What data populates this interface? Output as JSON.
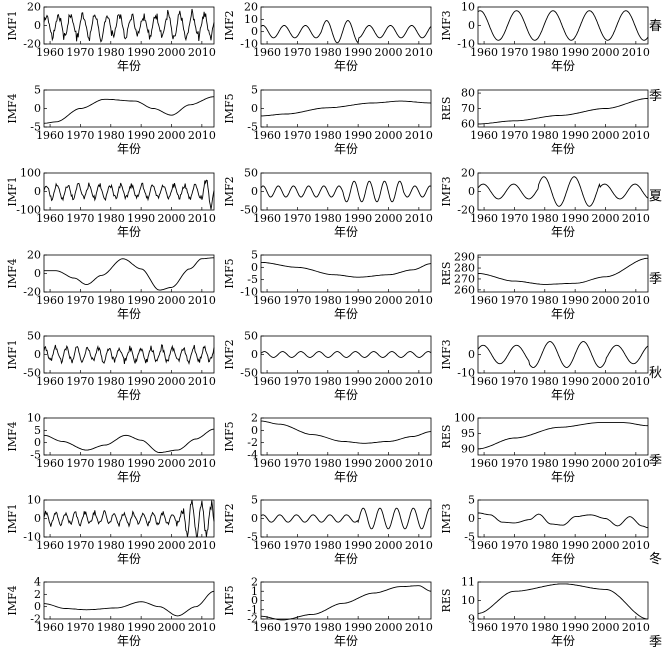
{
  "x_label": "年份",
  "x_ticks": [
    1960,
    1970,
    1980,
    1990,
    2000,
    2010
  ],
  "seasons": [
    "春",
    "季",
    "夏",
    "季",
    "秋",
    "季",
    "冬",
    "季"
  ],
  "line_color": "#000000",
  "chart_data": [
    {
      "type": "line",
      "season_index": 0,
      "row": 0,
      "col": 0,
      "ylabel": "IMF1",
      "xlim": [
        1958,
        2014
      ],
      "ylim": [
        -20,
        20
      ],
      "yticks": [
        -20,
        0,
        20
      ],
      "shape": "osc",
      "params": {
        "period": 4,
        "amp": 12,
        "phase": 0.3,
        "noise": 0.5
      }
    },
    {
      "type": "line",
      "season_index": 0,
      "row": 0,
      "col": 1,
      "ylabel": "IMF2",
      "xlim": [
        1958,
        2014
      ],
      "ylim": [
        -10,
        20
      ],
      "yticks": [
        -10,
        0,
        10,
        20
      ],
      "shape": "osc",
      "params": {
        "period": 7,
        "amp": 5,
        "phase": 1.0,
        "mod": [
          [
            1978,
            1990,
            9
          ]
        ]
      }
    },
    {
      "type": "line",
      "season_index": 0,
      "row": 0,
      "col": 2,
      "ylabel": "IMF3",
      "xlim": [
        1958,
        2014
      ],
      "ylim": [
        -10,
        10
      ],
      "yticks": [
        -10,
        0,
        10
      ],
      "shape": "osc",
      "params": {
        "period": 12,
        "amp": 8,
        "phase": 1.2
      }
    },
    {
      "type": "line",
      "season_index": 0,
      "row": 1,
      "col": 0,
      "ylabel": "IMF4",
      "xlim": [
        1958,
        2014
      ],
      "ylim": [
        -5,
        5
      ],
      "yticks": [
        -5,
        0,
        5
      ],
      "shape": "points",
      "points": [
        [
          1958,
          -4
        ],
        [
          1962,
          -3.6
        ],
        [
          1970,
          0
        ],
        [
          1978,
          2.5
        ],
        [
          1988,
          2
        ],
        [
          1994,
          0
        ],
        [
          2000,
          -1.8
        ],
        [
          2006,
          1
        ],
        [
          2014,
          3.2
        ]
      ]
    },
    {
      "type": "line",
      "season_index": 0,
      "row": 1,
      "col": 1,
      "ylabel": "IMF5",
      "xlim": [
        1958,
        2014
      ],
      "ylim": [
        -5,
        5
      ],
      "yticks": [
        -5,
        0,
        5
      ],
      "shape": "points",
      "points": [
        [
          1958,
          -2
        ],
        [
          1966,
          -1.5
        ],
        [
          1980,
          0.2
        ],
        [
          1995,
          1.5
        ],
        [
          2004,
          2
        ],
        [
          2014,
          1.5
        ]
      ]
    },
    {
      "type": "line",
      "season_index": 0,
      "row": 1,
      "col": 2,
      "ylabel": "RES",
      "xlim": [
        1958,
        2014
      ],
      "ylim": [
        58,
        82
      ],
      "yticks": [
        60,
        70,
        80
      ],
      "shape": "points",
      "points": [
        [
          1958,
          60
        ],
        [
          1970,
          62
        ],
        [
          1985,
          65.5
        ],
        [
          2000,
          70
        ],
        [
          2014,
          76.5
        ]
      ]
    },
    {
      "type": "line",
      "season_index": 2,
      "row": 2,
      "col": 0,
      "ylabel": "IMF1",
      "xlim": [
        1958,
        2014
      ],
      "ylim": [
        -100,
        100
      ],
      "yticks": [
        -100,
        0,
        100
      ],
      "shape": "osc",
      "params": {
        "period": 3.5,
        "amp": 35,
        "phase": 0.1,
        "noise": 0.4,
        "mod": [
          [
            2010,
            2014,
            70
          ]
        ]
      }
    },
    {
      "type": "line",
      "season_index": 2,
      "row": 2,
      "col": 1,
      "ylabel": "IMF2",
      "xlim": [
        1958,
        2014
      ],
      "ylim": [
        -50,
        50
      ],
      "yticks": [
        -50,
        0,
        50
      ],
      "shape": "osc",
      "params": {
        "period": 5,
        "amp": 15,
        "phase": 0.7,
        "mod": [
          [
            1985,
            2005,
            28
          ]
        ]
      }
    },
    {
      "type": "line",
      "season_index": 2,
      "row": 2,
      "col": 2,
      "ylabel": "IMF3",
      "xlim": [
        1958,
        2014
      ],
      "ylim": [
        -20,
        20
      ],
      "yticks": [
        -20,
        0,
        20
      ],
      "shape": "osc",
      "params": {
        "period": 10,
        "amp": 8,
        "phase": 0.5,
        "mod": [
          [
            1978,
            1998,
            16
          ]
        ]
      }
    },
    {
      "type": "line",
      "season_index": 2,
      "row": 3,
      "col": 0,
      "ylabel": "IMF4",
      "xlim": [
        1958,
        2014
      ],
      "ylim": [
        -20,
        20
      ],
      "yticks": [
        -20,
        0,
        20
      ],
      "shape": "points",
      "points": [
        [
          1958,
          3
        ],
        [
          1962,
          3
        ],
        [
          1968,
          -5
        ],
        [
          1972,
          -12
        ],
        [
          1977,
          -2
        ],
        [
          1984,
          16
        ],
        [
          1990,
          5
        ],
        [
          1996,
          -18
        ],
        [
          2000,
          -15
        ],
        [
          2006,
          5
        ],
        [
          2010,
          16
        ],
        [
          2014,
          17
        ]
      ]
    },
    {
      "type": "line",
      "season_index": 2,
      "row": 3,
      "col": 1,
      "ylabel": "IMF5",
      "xlim": [
        1958,
        2014
      ],
      "ylim": [
        -10,
        5
      ],
      "yticks": [
        -10,
        -5,
        0,
        5
      ],
      "shape": "points",
      "points": [
        [
          1958,
          2
        ],
        [
          1970,
          0
        ],
        [
          1982,
          -3
        ],
        [
          1990,
          -4
        ],
        [
          2000,
          -3
        ],
        [
          2008,
          -1
        ],
        [
          2014,
          1.5
        ]
      ]
    },
    {
      "type": "line",
      "season_index": 2,
      "row": 3,
      "col": 2,
      "ylabel": "RES",
      "xlim": [
        1958,
        2014
      ],
      "ylim": [
        258,
        292
      ],
      "yticks": [
        260,
        270,
        280,
        290
      ],
      "shape": "points",
      "points": [
        [
          1958,
          275
        ],
        [
          1970,
          268
        ],
        [
          1980,
          265
        ],
        [
          1990,
          266
        ],
        [
          2000,
          272
        ],
        [
          2014,
          289
        ]
      ]
    },
    {
      "type": "line",
      "season_index": 4,
      "row": 4,
      "col": 0,
      "ylabel": "IMF1",
      "xlim": [
        1958,
        2014
      ],
      "ylim": [
        -50,
        50
      ],
      "yticks": [
        -50,
        0,
        50
      ],
      "shape": "osc",
      "params": {
        "period": 3.5,
        "amp": 18,
        "phase": 0.9,
        "noise": 0.5
      }
    },
    {
      "type": "line",
      "season_index": 4,
      "row": 4,
      "col": 1,
      "ylabel": "IMF2",
      "xlim": [
        1958,
        2014
      ],
      "ylim": [
        -50,
        50
      ],
      "yticks": [
        -50,
        0,
        50
      ],
      "shape": "osc",
      "params": {
        "period": 6,
        "amp": 8,
        "phase": 0.4
      }
    },
    {
      "type": "line",
      "season_index": 4,
      "row": 4,
      "col": 2,
      "ylabel": "IMF3",
      "xlim": [
        1958,
        2014
      ],
      "ylim": [
        -10,
        10
      ],
      "yticks": [
        -10,
        0
      ],
      "shape": "osc",
      "params": {
        "period": 11,
        "amp": 5,
        "phase": 0.6,
        "mod": [
          [
            1975,
            2000,
            7
          ]
        ]
      }
    },
    {
      "type": "line",
      "season_index": 4,
      "row": 5,
      "col": 0,
      "ylabel": "IMF4",
      "xlim": [
        1958,
        2014
      ],
      "ylim": [
        -5,
        10
      ],
      "yticks": [
        -5,
        0,
        5,
        10
      ],
      "shape": "points",
      "points": [
        [
          1958,
          3
        ],
        [
          1964,
          0.5
        ],
        [
          1972,
          -3
        ],
        [
          1978,
          -1
        ],
        [
          1985,
          3
        ],
        [
          1990,
          1
        ],
        [
          1996,
          -4
        ],
        [
          2002,
          -3
        ],
        [
          2008,
          1.5
        ],
        [
          2014,
          5.5
        ]
      ]
    },
    {
      "type": "line",
      "season_index": 4,
      "row": 5,
      "col": 1,
      "ylabel": "IMF5",
      "xlim": [
        1958,
        2014
      ],
      "ylim": [
        -4,
        2
      ],
      "yticks": [
        -4,
        -2,
        0,
        2
      ],
      "shape": "points",
      "points": [
        [
          1958,
          1.5
        ],
        [
          1964,
          1
        ],
        [
          1975,
          -0.7
        ],
        [
          1985,
          -1.8
        ],
        [
          1992,
          -2.1
        ],
        [
          2000,
          -1.8
        ],
        [
          2008,
          -1
        ],
        [
          2014,
          -0.2
        ]
      ]
    },
    {
      "type": "line",
      "season_index": 4,
      "row": 5,
      "col": 2,
      "ylabel": "RES",
      "xlim": [
        1958,
        2014
      ],
      "ylim": [
        88,
        100
      ],
      "yticks": [
        90,
        95,
        100
      ],
      "shape": "points",
      "points": [
        [
          1958,
          90
        ],
        [
          1970,
          93.5
        ],
        [
          1985,
          97
        ],
        [
          1998,
          98.5
        ],
        [
          2006,
          98.5
        ],
        [
          2014,
          97.5
        ]
      ]
    },
    {
      "type": "line",
      "season_index": 6,
      "row": 6,
      "col": 0,
      "ylabel": "IMF1",
      "xlim": [
        1958,
        2014
      ],
      "ylim": [
        -10,
        10
      ],
      "yticks": [
        -10,
        0,
        10
      ],
      "shape": "osc",
      "params": {
        "period": 3.2,
        "amp": 3,
        "phase": 0.2,
        "noise": 0.5,
        "mod": [
          [
            2004,
            2014,
            8
          ]
        ]
      }
    },
    {
      "type": "line",
      "season_index": 6,
      "row": 6,
      "col": 1,
      "ylabel": "IMF2",
      "xlim": [
        1958,
        2014
      ],
      "ylim": [
        -5,
        5
      ],
      "yticks": [
        -5,
        0,
        5
      ],
      "shape": "osc",
      "params": {
        "period": 5.5,
        "amp": 1,
        "phase": 0.8,
        "mod": [
          [
            1990,
            2014,
            2.8
          ]
        ]
      }
    },
    {
      "type": "line",
      "season_index": 6,
      "row": 6,
      "col": 2,
      "ylabel": "IMF3",
      "xlim": [
        1958,
        2014
      ],
      "ylim": [
        -5,
        5
      ],
      "yticks": [
        -5,
        0,
        5
      ],
      "shape": "points",
      "points": [
        [
          1958,
          1.5
        ],
        [
          1962,
          1
        ],
        [
          1966,
          -1
        ],
        [
          1970,
          -1.2
        ],
        [
          1975,
          -0.3
        ],
        [
          1978,
          1.2
        ],
        [
          1982,
          -1.5
        ],
        [
          1986,
          -1.8
        ],
        [
          1990,
          0.5
        ],
        [
          1995,
          1
        ],
        [
          2000,
          0
        ],
        [
          2004,
          -2
        ],
        [
          2008,
          0.5
        ],
        [
          2012,
          -2
        ],
        [
          2014,
          -2.5
        ]
      ]
    },
    {
      "type": "line",
      "season_index": 6,
      "row": 7,
      "col": 0,
      "ylabel": "IMF4",
      "xlim": [
        1958,
        2014
      ],
      "ylim": [
        -2,
        4
      ],
      "yticks": [
        -2,
        0,
        2,
        4
      ],
      "shape": "points",
      "points": [
        [
          1958,
          0.5
        ],
        [
          1965,
          -0.3
        ],
        [
          1972,
          -0.5
        ],
        [
          1982,
          -0.2
        ],
        [
          1990,
          0.8
        ],
        [
          1996,
          0
        ],
        [
          2002,
          -1.5
        ],
        [
          2008,
          0
        ],
        [
          2014,
          2.5
        ]
      ]
    },
    {
      "type": "line",
      "season_index": 6,
      "row": 7,
      "col": 1,
      "ylabel": "IMF5",
      "xlim": [
        1958,
        2014
      ],
      "ylim": [
        -2,
        2
      ],
      "yticks": [
        -2,
        -1,
        0,
        1,
        2
      ],
      "shape": "points",
      "points": [
        [
          1958,
          -1.7
        ],
        [
          1965,
          -2.1
        ],
        [
          1975,
          -1.5
        ],
        [
          1985,
          -0.3
        ],
        [
          1995,
          0.8
        ],
        [
          2004,
          1.5
        ],
        [
          2010,
          1.6
        ],
        [
          2014,
          1
        ]
      ]
    },
    {
      "type": "line",
      "season_index": 6,
      "row": 7,
      "col": 2,
      "ylabel": "RES",
      "xlim": [
        1958,
        2014
      ],
      "ylim": [
        9,
        11
      ],
      "yticks": [
        9,
        10,
        11
      ],
      "shape": "points",
      "points": [
        [
          1958,
          9.3
        ],
        [
          1970,
          10.5
        ],
        [
          1986,
          10.9
        ],
        [
          2000,
          10.6
        ],
        [
          2014,
          9
        ]
      ]
    }
  ]
}
